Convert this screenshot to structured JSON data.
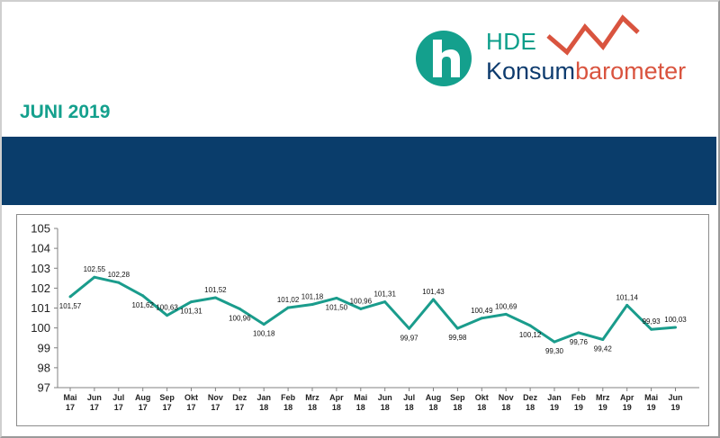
{
  "header": {
    "brand_top": "HDE",
    "brand_word_1": "Konsum",
    "brand_word_2": "barometer",
    "month_title": "JUNI 2019",
    "colors": {
      "teal": "#14a08d",
      "navy": "#0a3d6b",
      "red": "#d9543f"
    }
  },
  "chart_data": {
    "type": "line",
    "categories": [
      [
        "Mai",
        "17"
      ],
      [
        "Jun",
        "17"
      ],
      [
        "Jul",
        "17"
      ],
      [
        "Aug",
        "17"
      ],
      [
        "Sep",
        "17"
      ],
      [
        "Okt",
        "17"
      ],
      [
        "Nov",
        "17"
      ],
      [
        "Dez",
        "17"
      ],
      [
        "Jan",
        "18"
      ],
      [
        "Feb",
        "18"
      ],
      [
        "Mrz",
        "18"
      ],
      [
        "Apr",
        "18"
      ],
      [
        "Mai",
        "18"
      ],
      [
        "Jun",
        "18"
      ],
      [
        "Jul",
        "18"
      ],
      [
        "Aug",
        "18"
      ],
      [
        "Sep",
        "18"
      ],
      [
        "Okt",
        "18"
      ],
      [
        "Nov",
        "18"
      ],
      [
        "Dez",
        "18"
      ],
      [
        "Jan",
        "19"
      ],
      [
        "Feb",
        "19"
      ],
      [
        "Mrz",
        "19"
      ],
      [
        "Apr",
        "19"
      ],
      [
        "Mai",
        "19"
      ],
      [
        "Jun",
        "19"
      ]
    ],
    "series": [
      {
        "values": [
          101.57,
          102.55,
          102.28,
          101.62,
          100.63,
          101.31,
          101.52,
          100.96,
          100.18,
          101.02,
          101.18,
          101.5,
          100.96,
          101.31,
          99.97,
          101.43,
          99.98,
          100.49,
          100.69,
          100.12,
          99.3,
          99.76,
          99.42,
          101.14,
          99.93,
          100.03
        ],
        "labels": [
          "101,57",
          "102,55",
          "102,28",
          "101,62",
          "100,63",
          "101,31",
          "101,52",
          "100,96",
          "100,18",
          "101,02",
          "101,18",
          "101,50",
          "100,96",
          "101,31",
          "99,97",
          "101,43",
          "99,98",
          "100,49",
          "100,69",
          "100,12",
          "99,30",
          "99,76",
          "99,42",
          "101,14",
          "99,93",
          "100,03"
        ],
        "label_pos": [
          "below",
          "above",
          "above",
          "below",
          "above",
          "below",
          "above",
          "below",
          "below",
          "above",
          "above",
          "below",
          "above",
          "above",
          "below",
          "above",
          "below",
          "above",
          "above",
          "below",
          "below",
          "below",
          "below",
          "above",
          "above",
          "above"
        ],
        "color": "#1a9c8c"
      }
    ],
    "yticks": [
      "97",
      "98",
      "99",
      "100",
      "101",
      "102",
      "103",
      "104",
      "105"
    ],
    "ylim": [
      97,
      105
    ],
    "grid": false
  }
}
